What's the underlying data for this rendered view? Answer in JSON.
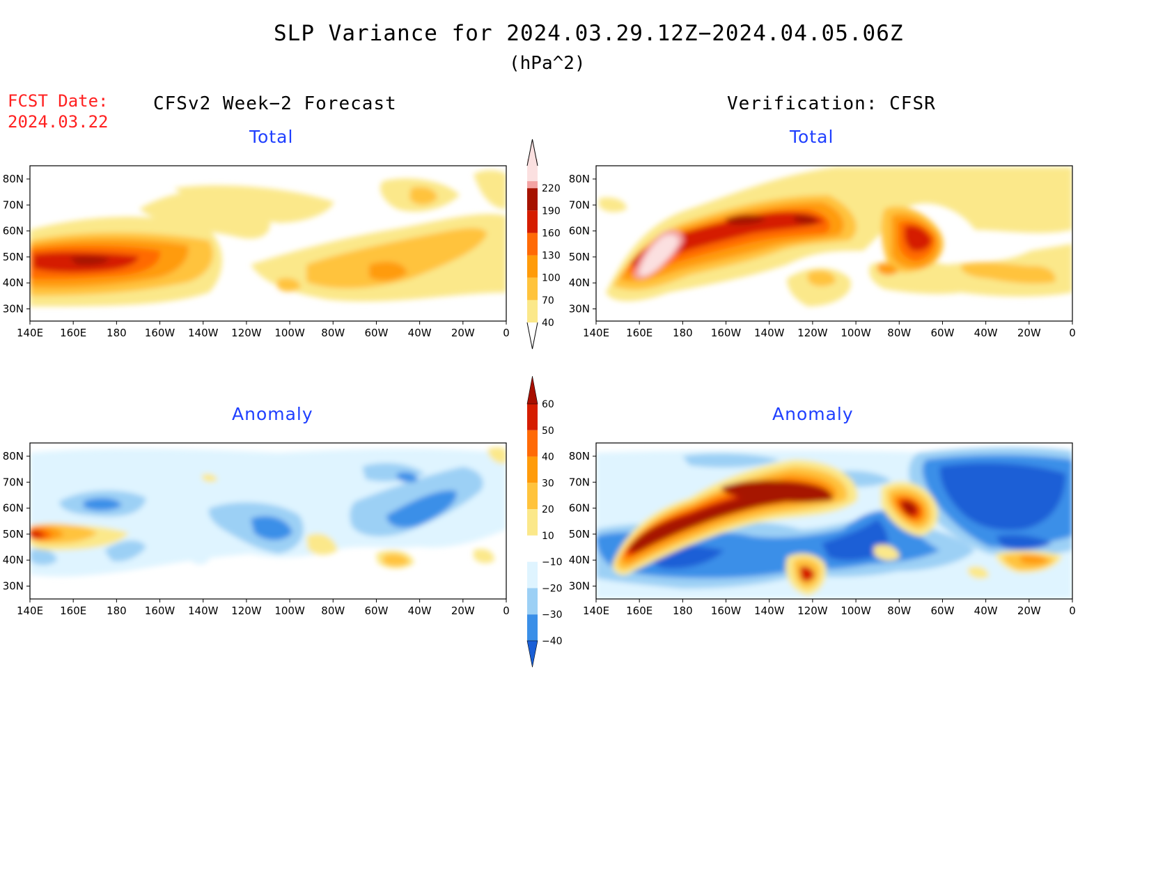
{
  "title": "SLP Variance for 2024.03.29.12Z−2024.04.05.06Z",
  "units": "(hPa^2)",
  "forecast_date": {
    "label": "FCST Date:",
    "value": "2024.03.22"
  },
  "columns": {
    "left": "CFSv2 Week−2 Forecast",
    "right": "Verification: CFSR"
  },
  "panel_titles": {
    "total": "Total",
    "anomaly": "Anomaly"
  },
  "lat_labels": [
    "80N",
    "70N",
    "60N",
    "50N",
    "40N",
    "30N"
  ],
  "lon_labels": [
    "140E",
    "160E",
    "180",
    "160W",
    "140W",
    "120W",
    "100W",
    "80W",
    "60W",
    "40W",
    "20W",
    "0"
  ],
  "colorbar_total": {
    "levels": [
      "40",
      "70",
      "100",
      "130",
      "160",
      "190",
      "220"
    ],
    "colors": [
      "#fbe88a",
      "#ffc33c",
      "#ff9b0a",
      "#ff6a06",
      "#d51d00",
      "#a61200",
      "#f3a3a3",
      "#fbe0e0"
    ]
  },
  "colorbar_anomaly": {
    "levels": [
      "60",
      "50",
      "40",
      "30",
      "20",
      "10",
      "−10",
      "−20",
      "−30",
      "−40"
    ],
    "colors": [
      "#a80f00",
      "#d51d00",
      "#ff6a06",
      "#ff9b0a",
      "#ffc33c",
      "#fbe88a",
      "#ffffff",
      "#dff4ff",
      "#9cd0f5",
      "#3a8fe8",
      "#1a5fd6"
    ]
  }
}
